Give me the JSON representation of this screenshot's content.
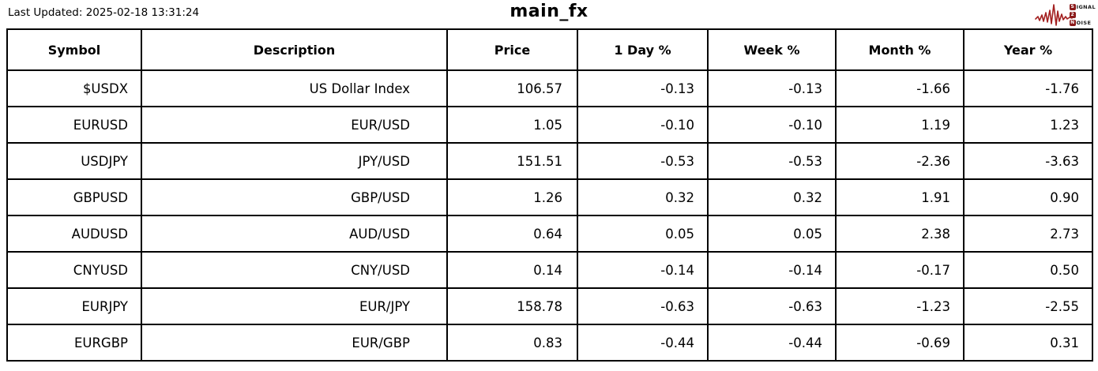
{
  "header": {
    "last_updated": "Last Updated: 2025-02-18 13:31:24",
    "title": "main_fx"
  },
  "logo": {
    "line1_initial": "S",
    "line1_rest": "IGNAL",
    "line2_initial": "2",
    "line3_initial": "N",
    "line3_rest": "OISE"
  },
  "colors": {
    "positive_bg": "#90ee90",
    "negative_bg": "#f08080",
    "strong_negative_bg": "#8b0000",
    "border": "#000000",
    "logo_red": "#8b1a1a"
  },
  "table": {
    "columns": [
      "Symbol",
      "Description",
      "Price",
      "1 Day %",
      "Week %",
      "Month %",
      "Year %"
    ],
    "rows": [
      {
        "cells": [
          {
            "t": "$USDX",
            "bg": ""
          },
          {
            "t": "US Dollar Index",
            "bg": ""
          },
          {
            "t": "106.57",
            "bg": ""
          },
          {
            "t": "-0.13",
            "bg": ""
          },
          {
            "t": "-0.13",
            "bg": ""
          },
          {
            "t": "-1.66",
            "bg": "neg"
          },
          {
            "t": "-1.76",
            "bg": "neg"
          }
        ]
      },
      {
        "cells": [
          {
            "t": "EURUSD",
            "bg": ""
          },
          {
            "t": "EUR/USD",
            "bg": ""
          },
          {
            "t": "1.05",
            "bg": ""
          },
          {
            "t": "-0.10",
            "bg": ""
          },
          {
            "t": "-0.10",
            "bg": ""
          },
          {
            "t": "1.19",
            "bg": "pos"
          },
          {
            "t": "1.23",
            "bg": ""
          }
        ]
      },
      {
        "cells": [
          {
            "t": "USDJPY",
            "bg": ""
          },
          {
            "t": "JPY/USD",
            "bg": ""
          },
          {
            "t": "151.51",
            "bg": ""
          },
          {
            "t": "-0.53",
            "bg": "sneg"
          },
          {
            "t": "-0.53",
            "bg": ""
          },
          {
            "t": "-2.36",
            "bg": "sneg"
          },
          {
            "t": "-3.63",
            "bg": "sneg"
          }
        ]
      },
      {
        "cells": [
          {
            "t": "GBPUSD",
            "bg": ""
          },
          {
            "t": "GBP/USD",
            "bg": ""
          },
          {
            "t": "1.26",
            "bg": ""
          },
          {
            "t": "0.32",
            "bg": "pos"
          },
          {
            "t": "0.32",
            "bg": ""
          },
          {
            "t": "1.91",
            "bg": "pos"
          },
          {
            "t": "0.90",
            "bg": ""
          }
        ]
      },
      {
        "cells": [
          {
            "t": "AUDUSD",
            "bg": ""
          },
          {
            "t": "AUD/USD",
            "bg": ""
          },
          {
            "t": "0.64",
            "bg": ""
          },
          {
            "t": "0.05",
            "bg": ""
          },
          {
            "t": "0.05",
            "bg": ""
          },
          {
            "t": "2.38",
            "bg": "pos"
          },
          {
            "t": "2.73",
            "bg": "pos"
          }
        ]
      },
      {
        "cells": [
          {
            "t": "CNYUSD",
            "bg": ""
          },
          {
            "t": "CNY/USD",
            "bg": ""
          },
          {
            "t": "0.14",
            "bg": ""
          },
          {
            "t": "-0.14",
            "bg": "neg"
          },
          {
            "t": "-0.14",
            "bg": ""
          },
          {
            "t": "-0.17",
            "bg": ""
          },
          {
            "t": "0.50",
            "bg": ""
          }
        ]
      },
      {
        "cells": [
          {
            "t": "EURJPY",
            "bg": ""
          },
          {
            "t": "EUR/JPY",
            "bg": ""
          },
          {
            "t": "158.78",
            "bg": ""
          },
          {
            "t": "-0.63",
            "bg": "sneg"
          },
          {
            "t": "-0.63",
            "bg": "neg"
          },
          {
            "t": "-1.23",
            "bg": "neg"
          },
          {
            "t": "-2.55",
            "bg": "neg"
          }
        ]
      },
      {
        "cells": [
          {
            "t": "EURGBP",
            "bg": ""
          },
          {
            "t": "EUR/GBP",
            "bg": ""
          },
          {
            "t": "0.83",
            "bg": ""
          },
          {
            "t": "-0.44",
            "bg": "sneg"
          },
          {
            "t": "-0.44",
            "bg": ""
          },
          {
            "t": "-0.69",
            "bg": ""
          },
          {
            "t": "0.31",
            "bg": ""
          }
        ]
      }
    ]
  },
  "chart_data": {
    "type": "table",
    "title": "main_fx",
    "columns": [
      "Symbol",
      "Description",
      "Price",
      "1 Day %",
      "Week %",
      "Month %",
      "Year %"
    ],
    "rows": [
      [
        "$USDX",
        "US Dollar Index",
        106.57,
        -0.13,
        -0.13,
        -1.66,
        -1.76
      ],
      [
        "EURUSD",
        "EUR/USD",
        1.05,
        -0.1,
        -0.1,
        1.19,
        1.23
      ],
      [
        "USDJPY",
        "JPY/USD",
        151.51,
        -0.53,
        -0.53,
        -2.36,
        -3.63
      ],
      [
        "GBPUSD",
        "GBP/USD",
        1.26,
        0.32,
        0.32,
        1.91,
        0.9
      ],
      [
        "AUDUSD",
        "AUD/USD",
        0.64,
        0.05,
        0.05,
        2.38,
        2.73
      ],
      [
        "CNYUSD",
        "CNY/USD",
        0.14,
        -0.14,
        -0.14,
        -0.17,
        0.5
      ],
      [
        "EURJPY",
        "EUR/JPY",
        158.78,
        -0.63,
        -0.63,
        -1.23,
        -2.55
      ],
      [
        "EURGBP",
        "EUR/GBP",
        0.83,
        -0.44,
        -0.44,
        -0.69,
        0.31
      ]
    ],
    "highlight_rule": "green = strong gain, light red = loss, dark red = strong loss"
  }
}
